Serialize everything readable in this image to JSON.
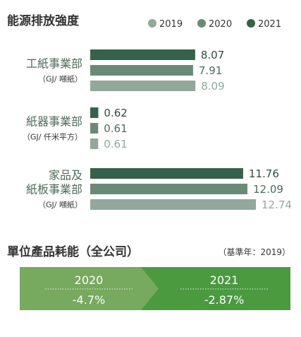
{
  "chart_data": {
    "type": "bar",
    "title": "能源排放強度",
    "legend_position": "top-right",
    "legend": [
      {
        "name": "2019",
        "color": "#93a79b"
      },
      {
        "name": "2020",
        "color": "#6a8a77"
      },
      {
        "name": "2021",
        "color": "#36614a"
      }
    ],
    "groups": [
      {
        "name_lines": [
          "工紙事業部"
        ],
        "unit": "（GJ/ 噸紙）",
        "bars": [
          {
            "series": "2021",
            "value": 8.07
          },
          {
            "series": "2020",
            "value": 7.91
          },
          {
            "series": "2019",
            "value": 8.09
          }
        ]
      },
      {
        "name_lines": [
          "紙器事業部"
        ],
        "unit": "（GJ/ 仟米平方）",
        "bars": [
          {
            "series": "2021",
            "value": 0.62
          },
          {
            "series": "2020",
            "value": 0.61
          },
          {
            "series": "2019",
            "value": 0.61
          }
        ]
      },
      {
        "name_lines": [
          "家品及",
          "紙板事業部"
        ],
        "unit": "（GJ/ 噸紙）",
        "bars": [
          {
            "series": "2021",
            "value": 11.76
          },
          {
            "series": "2020",
            "value": 12.09
          },
          {
            "series": "2019",
            "value": 12.74
          }
        ]
      }
    ],
    "value_label_colors": {
      "2021": "#2f4a3b",
      "2020": "#4f6a5a",
      "2019": "#93a79b"
    }
  },
  "summary": {
    "title": "單位產品耗能（全公司）",
    "base_year_note": "（基準年：2019）",
    "items": [
      {
        "year": "2020",
        "change": "-4.7%",
        "color": "#77a95f"
      },
      {
        "year": "2021",
        "change": "-2.87%",
        "color": "#4b9a40"
      }
    ]
  }
}
